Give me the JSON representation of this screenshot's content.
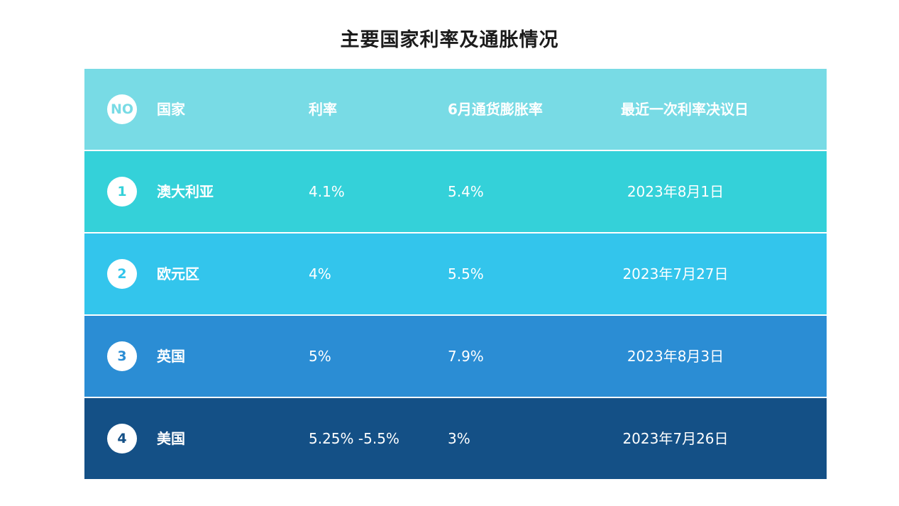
{
  "title": "主要国家利率及通胀情况",
  "header": {
    "no": "NO",
    "country": "国家",
    "rate": "利率",
    "inflation": "6月通货膨胀率",
    "date": "最近一次利率决议日",
    "color": "#78dbe5",
    "badge_text_color": "#78dbe5"
  },
  "rows": [
    {
      "no": "1",
      "country": "澳大利亚",
      "rate": "4.1%",
      "inflation": "5.4%",
      "date": "2023年8月1日",
      "color": "#34d1d9"
    },
    {
      "no": "2",
      "country": "欧元区",
      "rate": "4%",
      "inflation": "5.5%",
      "date": "2023年7月27日",
      "color": "#33c5ec"
    },
    {
      "no": "3",
      "country": "英国",
      "rate": "5%",
      "inflation": "7.9%",
      "date": "2023年8月3日",
      "color": "#2b8dd4"
    },
    {
      "no": "4",
      "country": "美国",
      "rate": "5.25% -5.5%",
      "inflation": "3%",
      "date": "2023年7月26日",
      "color": "#145086"
    }
  ]
}
